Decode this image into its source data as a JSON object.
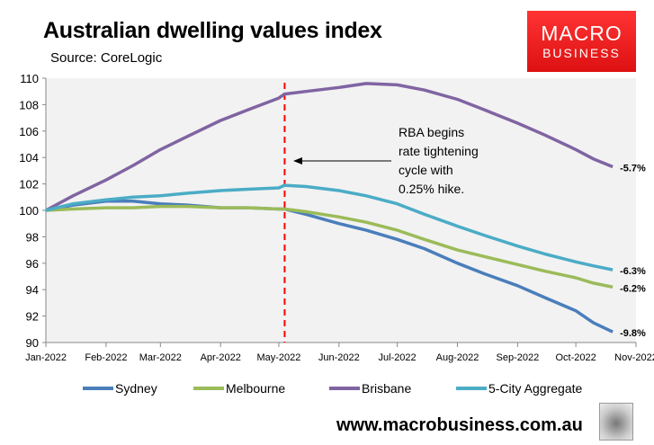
{
  "chart_data": {
    "type": "line",
    "title": "Australian dwelling values index",
    "subtitle": "Source: CoreLogic",
    "xlabel": "",
    "ylabel": "",
    "ylim": [
      90,
      110
    ],
    "yticks": [
      90,
      92,
      94,
      96,
      98,
      100,
      102,
      104,
      106,
      108,
      110
    ],
    "xlim": [
      "2022-01-01",
      "2022-11-01"
    ],
    "xticks": [
      {
        "d": "2022-01-01",
        "l": "Jan-2022"
      },
      {
        "d": "2022-02-01",
        "l": "Feb-2022"
      },
      {
        "d": "2022-03-01",
        "l": "Mar-2022"
      },
      {
        "d": "2022-04-01",
        "l": "Apr-2022"
      },
      {
        "d": "2022-05-01",
        "l": "May-2022"
      },
      {
        "d": "2022-06-01",
        "l": "Jun-2022"
      },
      {
        "d": "2022-07-01",
        "l": "Jul-2022"
      },
      {
        "d": "2022-08-01",
        "l": "Aug-2022"
      },
      {
        "d": "2022-09-01",
        "l": "Sep-2022"
      },
      {
        "d": "2022-10-01",
        "l": "Oct-2022"
      },
      {
        "d": "2022-11-01",
        "l": "Nov-2022"
      }
    ],
    "grid": false,
    "legend": "bottom",
    "x": [
      "2022-01-01",
      "2022-01-15",
      "2022-02-01",
      "2022-02-15",
      "2022-03-01",
      "2022-03-15",
      "2022-04-01",
      "2022-04-15",
      "2022-05-01",
      "2022-05-04",
      "2022-05-15",
      "2022-06-01",
      "2022-06-15",
      "2022-07-01",
      "2022-07-15",
      "2022-08-01",
      "2022-08-15",
      "2022-09-01",
      "2022-09-15",
      "2022-10-01",
      "2022-10-10",
      "2022-10-20"
    ],
    "series": [
      {
        "name": "Sydney",
        "color": "#4a7ebb",
        "end_label": "-9.8%",
        "values": [
          100,
          100.4,
          100.7,
          100.7,
          100.5,
          100.4,
          100.2,
          100.2,
          100.1,
          100.1,
          99.7,
          99.0,
          98.5,
          97.8,
          97.1,
          96.0,
          95.2,
          94.3,
          93.4,
          92.4,
          91.5,
          90.8
        ]
      },
      {
        "name": "Melbourne",
        "color": "#9bbb59",
        "end_label": "-6.2%",
        "values": [
          100,
          100.1,
          100.2,
          100.2,
          100.3,
          100.3,
          100.2,
          100.2,
          100.1,
          100.1,
          99.9,
          99.5,
          99.1,
          98.5,
          97.8,
          97.0,
          96.5,
          95.9,
          95.4,
          94.9,
          94.5,
          94.2
        ]
      },
      {
        "name": "Brisbane",
        "color": "#8064a2",
        "end_label": "-5.7%",
        "values": [
          100,
          101.1,
          102.3,
          103.4,
          104.6,
          105.6,
          106.8,
          107.6,
          108.5,
          108.8,
          109.0,
          109.3,
          109.6,
          109.5,
          109.1,
          108.4,
          107.6,
          106.6,
          105.7,
          104.6,
          103.9,
          103.3
        ]
      },
      {
        "name": "5-City Aggregate",
        "color": "#4bacc6",
        "end_label": "-6.3%",
        "values": [
          100,
          100.5,
          100.8,
          101.0,
          101.1,
          101.3,
          101.5,
          101.6,
          101.7,
          101.9,
          101.8,
          101.5,
          101.1,
          100.5,
          99.7,
          98.8,
          98.1,
          97.3,
          96.7,
          96.1,
          95.8,
          95.5
        ]
      }
    ],
    "event": {
      "date": "2022-05-04",
      "color": "#ff0000",
      "annotation": [
        "RBA begins",
        "rate tightening",
        "cycle with",
        "0.25% hike."
      ]
    }
  },
  "brand": {
    "line1": "MACRO",
    "line2": "BUSINESS",
    "url": "www.macrobusiness.com.au"
  }
}
